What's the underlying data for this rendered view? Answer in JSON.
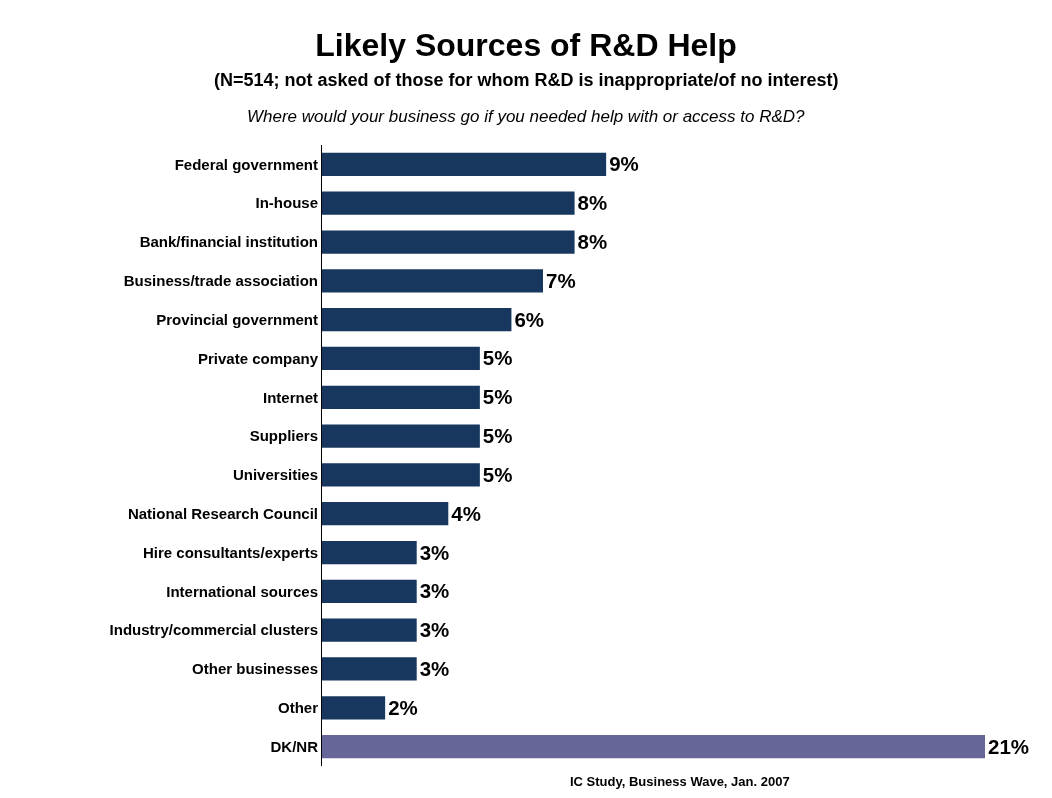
{
  "chart_data": {
    "type": "bar",
    "orientation": "horizontal",
    "title": "Likely Sources of R&D Help",
    "subtitle": "(N=514; not asked of those for whom R&D is inappropriate/of no interest)",
    "annotations": [
      "Where would your business go if you needed help with or access to R&D?",
      "IC Study, Business Wave, Jan. 2007"
    ],
    "categories": [
      "Federal government",
      "In-house",
      "Bank/financial institution",
      "Business/trade association",
      "Provincial government",
      "Private company",
      "Internet",
      "Suppliers",
      "Universities",
      "National Research Council",
      "Hire consultants/experts",
      "International sources",
      "Industry/commercial clusters",
      "Other businesses",
      "Other",
      "DK/NR"
    ],
    "values": [
      9,
      8,
      8,
      7,
      6,
      5,
      5,
      5,
      5,
      4,
      3,
      3,
      3,
      3,
      2,
      21
    ],
    "value_labels": [
      "9%",
      "8%",
      "8%",
      "7%",
      "6%",
      "5%",
      "5%",
      "5%",
      "5%",
      "4%",
      "3%",
      "3%",
      "3%",
      "3%",
      "2%",
      "21%"
    ],
    "colors": [
      "#17375e",
      "#17375e",
      "#17375e",
      "#17375e",
      "#17375e",
      "#17375e",
      "#17375e",
      "#17375e",
      "#17375e",
      "#17375e",
      "#17375e",
      "#17375e",
      "#17375e",
      "#17375e",
      "#17375e",
      "#666699"
    ]
  }
}
